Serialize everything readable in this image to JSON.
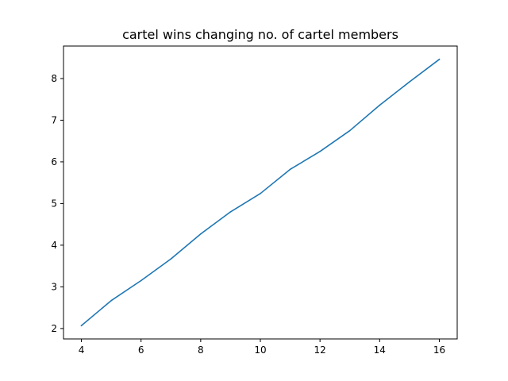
{
  "chart_data": {
    "type": "line",
    "title": "cartel wins changing no. of cartel members",
    "xlabel": "",
    "ylabel": "",
    "xlim": [
      3.4,
      16.6
    ],
    "ylim": [
      1.75,
      8.78
    ],
    "x_ticks": [
      4,
      6,
      8,
      10,
      12,
      14,
      16
    ],
    "y_ticks": [
      2,
      3,
      4,
      5,
      6,
      7,
      8
    ],
    "grid": false,
    "series": [
      {
        "color": "#1f77b4",
        "x": [
          4,
          5,
          6,
          7,
          8,
          9,
          10,
          11,
          12,
          13,
          14,
          15,
          16
        ],
        "y": [
          2.07,
          2.67,
          3.15,
          3.67,
          4.27,
          4.8,
          5.24,
          5.82,
          6.25,
          6.75,
          7.36,
          7.92,
          8.46
        ]
      }
    ]
  }
}
